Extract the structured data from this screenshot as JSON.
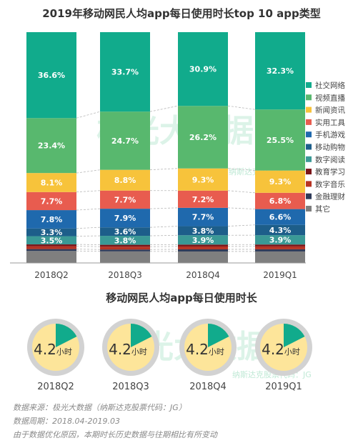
{
  "stacked_chart": {
    "title": "2019年移动网民人均app每日使用时长top 10 app类型"
  },
  "donut_chart": {
    "title": "移动网民人均app每日使用时长",
    "unit": "小时"
  },
  "footer": {
    "source": "数据来源：极光大数据（纳斯达克股票代码：JG）",
    "period": "数据周期：2018.04-2019.03",
    "note": "由于数据优化原因，本期时长历史数据与往期相比有所变动"
  },
  "watermark": {
    "text": "极光大数据",
    "sub": "纳斯达克股票代码：JG"
  },
  "chart_data": [
    {
      "type": "bar",
      "stacked": true,
      "categories": [
        "2018Q2",
        "2018Q3",
        "2018Q4",
        "2019Q1"
      ],
      "series": [
        {
          "name": "其它",
          "color": "#7f7f7f",
          "values": [
            5.1,
            4.9,
            4.8,
            4.8
          ]
        },
        {
          "name": "金融理财",
          "color": "#2e3a59",
          "values": [
            0.8,
            0.8,
            0.9,
            0.9
          ]
        },
        {
          "name": "数字音乐",
          "color": "#b73323",
          "values": [
            1.2,
            1.2,
            1.2,
            1.2
          ]
        },
        {
          "name": "教育学习",
          "color": "#7b1418",
          "values": [
            0.8,
            0.8,
            0.8,
            0.8
          ]
        },
        {
          "name": "数字阅读",
          "color": "#3a9996",
          "values": [
            3.5,
            3.8,
            3.9,
            3.9
          ]
        },
        {
          "name": "移动购物",
          "color": "#1d5e8a",
          "values": [
            3.3,
            3.6,
            3.8,
            4.3
          ]
        },
        {
          "name": "手机游戏",
          "color": "#1f69ad",
          "values": [
            7.8,
            7.9,
            7.7,
            6.6
          ]
        },
        {
          "name": "实用工具",
          "color": "#e85c4f",
          "values": [
            7.7,
            7.7,
            7.2,
            6.8
          ]
        },
        {
          "name": "新闻资讯",
          "color": "#f7c33b",
          "values": [
            8.1,
            8.8,
            9.3,
            9.3
          ]
        },
        {
          "name": "视频直播",
          "color": "#58b86e",
          "values": [
            23.4,
            24.7,
            26.2,
            25.5
          ]
        },
        {
          "name": "社交网络",
          "color": "#11ab8c",
          "values": [
            36.6,
            33.7,
            30.9,
            32.3
          ]
        }
      ],
      "labels": [
        [
          "",
          "",
          "",
          "",
          "3.5%",
          "3.3%",
          "7.8%",
          "7.7%",
          "8.1%",
          "23.4%",
          "36.6%"
        ],
        [
          "",
          "",
          "",
          "",
          "3.8%",
          "3.6%",
          "7.9%",
          "7.7%",
          "8.8%",
          "24.7%",
          "33.7%"
        ],
        [
          "",
          "",
          "",
          "",
          "3.9%",
          "3.8%",
          "7.7%",
          "7.2%",
          "9.3%",
          "26.2%",
          "30.9%"
        ],
        [
          "",
          "",
          "",
          "",
          "3.9%",
          "4.3%",
          "6.6%",
          "6.8%",
          "9.3%",
          "25.5%",
          "32.3%"
        ]
      ],
      "legend_position": "right"
    },
    {
      "type": "pie",
      "categories": [
        "2018Q2",
        "2018Q3",
        "2018Q4",
        "2019Q1"
      ],
      "values": [
        4.2,
        4.2,
        4.2,
        4.2
      ],
      "value_labels": [
        "4.2",
        "4.2",
        "4.2",
        "4.2"
      ],
      "unit": "小时",
      "max": 24,
      "colors": {
        "filled": "#11ab8c",
        "rest": "#fde59a",
        "ring": "#d2d2d2"
      }
    }
  ]
}
